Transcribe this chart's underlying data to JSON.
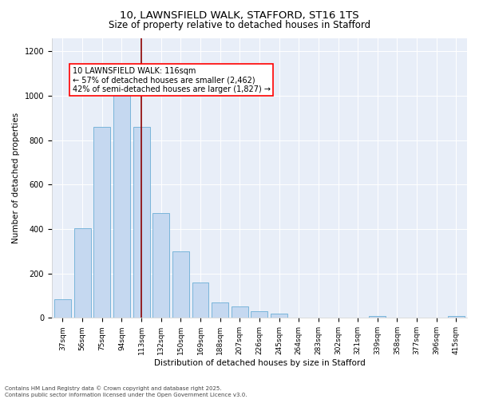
{
  "title_line1": "10, LAWNSFIELD WALK, STAFFORD, ST16 1TS",
  "title_line2": "Size of property relative to detached houses in Stafford",
  "xlabel": "Distribution of detached houses by size in Stafford",
  "ylabel": "Number of detached properties",
  "categories": [
    "37sqm",
    "56sqm",
    "75sqm",
    "94sqm",
    "113sqm",
    "132sqm",
    "150sqm",
    "169sqm",
    "188sqm",
    "207sqm",
    "226sqm",
    "245sqm",
    "264sqm",
    "283sqm",
    "302sqm",
    "321sqm",
    "339sqm",
    "358sqm",
    "377sqm",
    "396sqm",
    "415sqm"
  ],
  "values": [
    85,
    405,
    860,
    1005,
    860,
    470,
    300,
    160,
    70,
    50,
    30,
    20,
    0,
    0,
    0,
    0,
    10,
    0,
    0,
    0,
    10
  ],
  "bar_color": "#c5d8f0",
  "bar_edgecolor": "#6baed6",
  "vline_x_idx": 4,
  "vline_color": "#8b0000",
  "annotation_text": "10 LAWNSFIELD WALK: 116sqm\n← 57% of detached houses are smaller (2,462)\n42% of semi-detached houses are larger (1,827) →",
  "annotation_box_color": "white",
  "annotation_box_edgecolor": "red",
  "ylim": [
    0,
    1260
  ],
  "yticks": [
    0,
    200,
    400,
    600,
    800,
    1000,
    1200
  ],
  "background_color": "#e8eef8",
  "footer_line1": "Contains HM Land Registry data © Crown copyright and database right 2025.",
  "footer_line2": "Contains public sector information licensed under the Open Government Licence v3.0.",
  "title_fontsize": 9.5,
  "subtitle_fontsize": 8.5,
  "ylabel_fontsize": 7.5,
  "xlabel_fontsize": 7.5,
  "tick_fontsize": 6.5,
  "annot_fontsize": 7
}
